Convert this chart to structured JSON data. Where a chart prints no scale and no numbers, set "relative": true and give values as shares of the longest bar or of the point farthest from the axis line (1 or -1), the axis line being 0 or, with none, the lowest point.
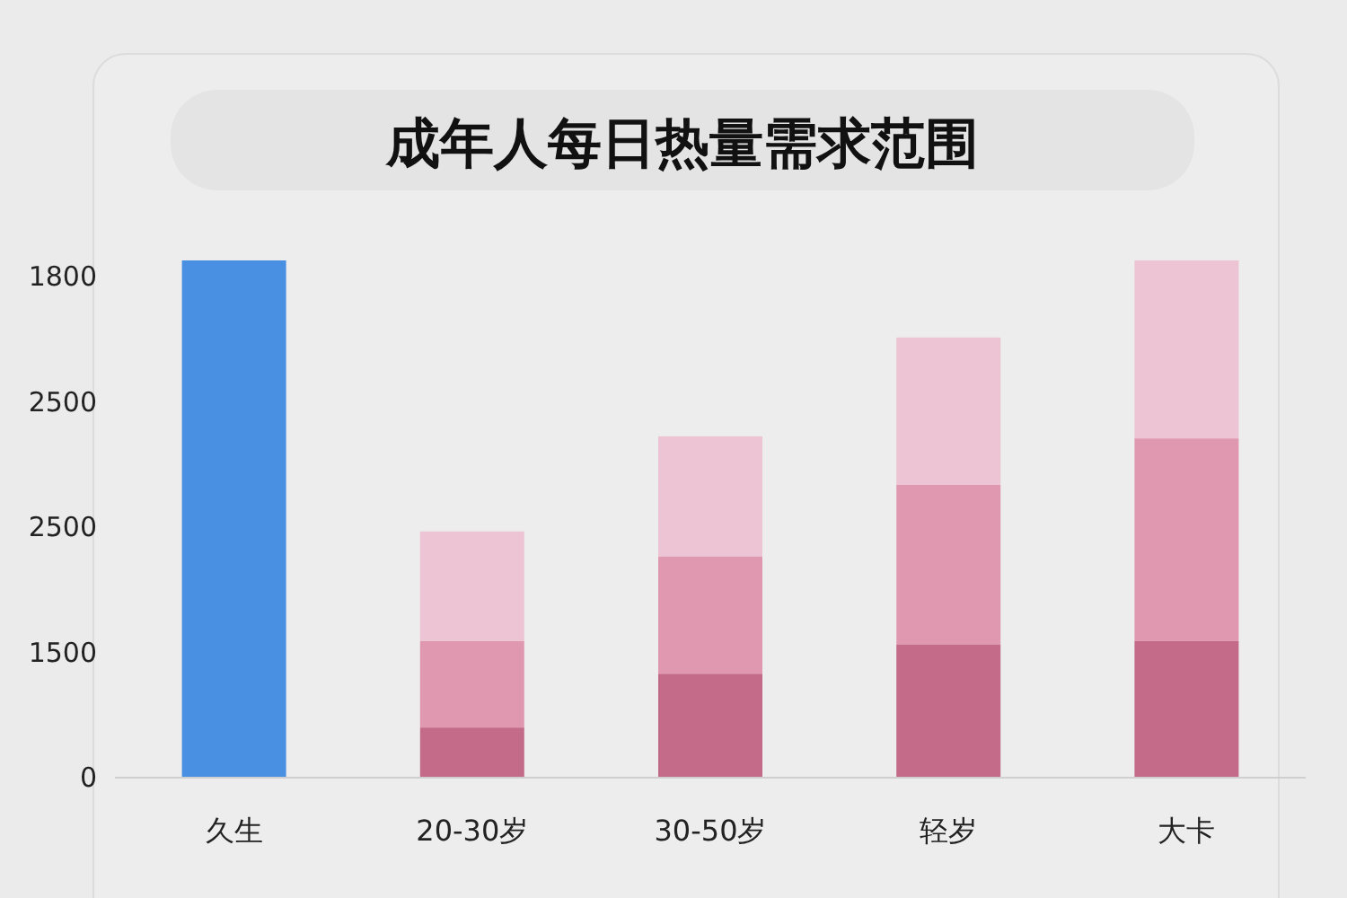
{
  "chart_data": {
    "type": "bar",
    "title": "成年人每日热量需求范围",
    "categories": [
      "久生",
      "20-30岁",
      "30-50岁",
      "轻岁",
      "大卡"
    ],
    "stacked": true,
    "relative": true,
    "annotations": [
      "1800",
      "2500",
      "2500",
      "1500",
      "0"
    ],
    "series": [
      {
        "values": [
          1,
          0.097,
          0.201,
          0.258,
          0.264
        ],
        "colors": [
          "#4a90e2",
          "#c46b8a",
          "#c46b8a",
          "#c46b8a",
          "#c46b8a"
        ]
      },
      {
        "values": [
          null,
          0.167,
          0.227,
          0.308,
          0.392
        ],
        "color": "#e098b0"
      },
      {
        "values": [
          null,
          0.212,
          0.232,
          0.285,
          0.344
        ],
        "color": "#ecc4d3"
      }
    ]
  }
}
